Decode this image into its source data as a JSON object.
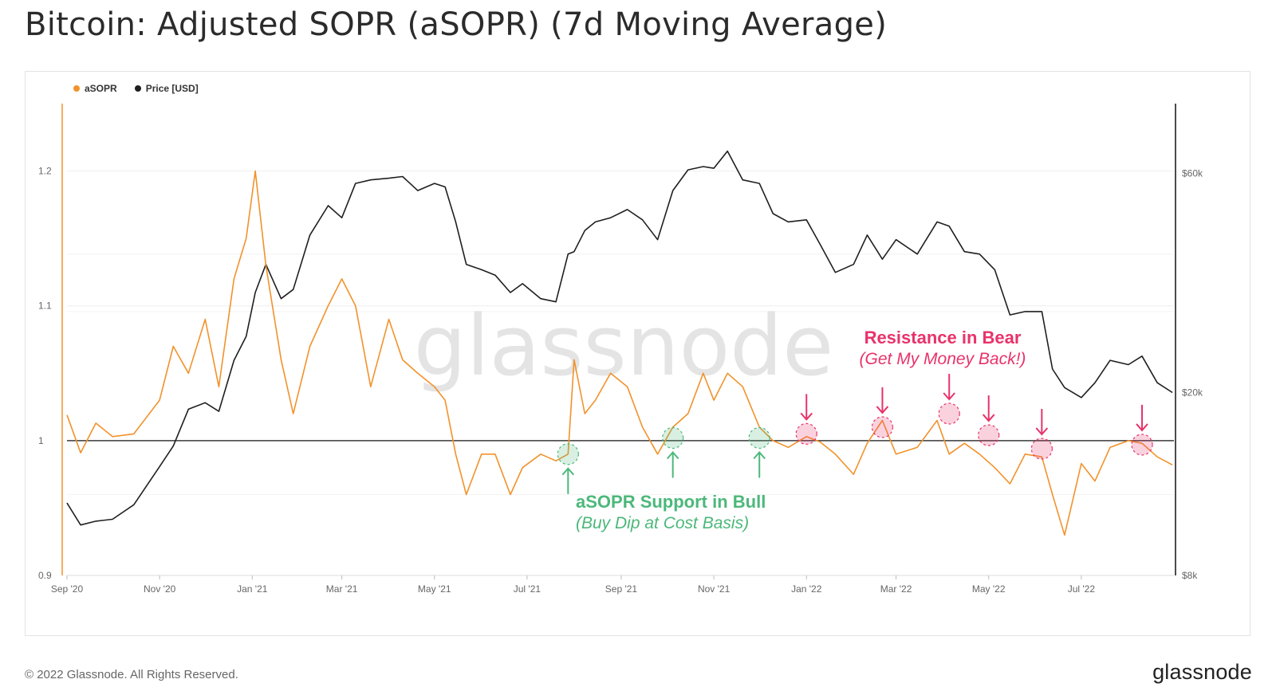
{
  "page": {
    "title": "Bitcoin: Adjusted SOPR (aSOPR) (7d Moving Average)",
    "copyright": "© 2022 Glassnode. All Rights Reserved.",
    "logo_text": "glassnode",
    "watermark": "glassnode"
  },
  "colors": {
    "asopr": "#f2922b",
    "price": "#1f1f1f",
    "support": "#4cb87a",
    "resistance": "#e8336a",
    "baseline": "#3a3a3a"
  },
  "chart_data": {
    "type": "line",
    "legend": [
      {
        "name": "aSOPR",
        "color": "#f2922b"
      },
      {
        "name": "Price [USD]",
        "color": "#1f1f1f"
      }
    ],
    "x_ticks": [
      "Sep '20",
      "Nov '20",
      "Jan '21",
      "Mar '21",
      "May '21",
      "Jul '21",
      "Sep '21",
      "Nov '21",
      "Jan '22",
      "Mar '22",
      "May '22",
      "Jul '22"
    ],
    "left_axis": {
      "ticks": [
        "0.9",
        "1",
        "1.1",
        "1.2"
      ],
      "range": [
        0.9,
        1.25
      ]
    },
    "right_axis": {
      "ticks": [
        "$8k",
        "$20k",
        "$60k"
      ],
      "scale": "log"
    },
    "baseline": 1.0,
    "series": [
      {
        "name": "aSOPR",
        "x": [
          "2020-09-01",
          "2020-09-10",
          "2020-09-20",
          "2020-10-01",
          "2020-10-15",
          "2020-11-01",
          "2020-11-10",
          "2020-11-20",
          "2020-12-01",
          "2020-12-10",
          "2020-12-20",
          "2020-12-28",
          "2021-01-03",
          "2021-01-10",
          "2021-01-20",
          "2021-01-28",
          "2021-02-08",
          "2021-02-20",
          "2021-03-01",
          "2021-03-10",
          "2021-03-20",
          "2021-04-01",
          "2021-04-10",
          "2021-04-20",
          "2021-05-01",
          "2021-05-08",
          "2021-05-15",
          "2021-05-22",
          "2021-06-01",
          "2021-06-10",
          "2021-06-20",
          "2021-06-28",
          "2021-07-10",
          "2021-07-20",
          "2021-07-28",
          "2021-08-01",
          "2021-08-08",
          "2021-08-15",
          "2021-08-25",
          "2021-09-05",
          "2021-09-15",
          "2021-09-25",
          "2021-10-05",
          "2021-10-15",
          "2021-10-25",
          "2021-11-01",
          "2021-11-10",
          "2021-11-20",
          "2021-12-01",
          "2021-12-10",
          "2021-12-20",
          "2022-01-01",
          "2022-01-10",
          "2022-01-20",
          "2022-02-01",
          "2022-02-10",
          "2022-02-20",
          "2022-03-01",
          "2022-03-15",
          "2022-03-28",
          "2022-04-05",
          "2022-04-15",
          "2022-04-25",
          "2022-05-05",
          "2022-05-15",
          "2022-05-25",
          "2022-06-05",
          "2022-06-12",
          "2022-06-20",
          "2022-07-01",
          "2022-07-10",
          "2022-07-20",
          "2022-08-01",
          "2022-08-10",
          "2022-08-20",
          "2022-08-30"
        ],
        "values": [
          1.019,
          0.991,
          1.013,
          1.003,
          1.005,
          1.03,
          1.07,
          1.05,
          1.09,
          1.04,
          1.12,
          1.15,
          1.2,
          1.13,
          1.06,
          1.02,
          1.07,
          1.1,
          1.12,
          1.1,
          1.04,
          1.09,
          1.06,
          1.05,
          1.04,
          1.03,
          0.99,
          0.96,
          0.99,
          0.99,
          0.96,
          0.98,
          0.99,
          0.985,
          0.99,
          1.06,
          1.02,
          1.03,
          1.05,
          1.04,
          1.01,
          0.99,
          1.01,
          1.02,
          1.05,
          1.03,
          1.05,
          1.04,
          1.01,
          1.0,
          0.995,
          1.003,
          0.999,
          0.99,
          0.975,
          0.998,
          1.015,
          0.99,
          0.995,
          1.015,
          0.99,
          0.998,
          0.99,
          0.98,
          0.968,
          0.99,
          0.988,
          0.96,
          0.93,
          0.983,
          0.97,
          0.995,
          1.0,
          0.998,
          0.988,
          0.982
        ]
      },
      {
        "name": "Price [USD]",
        "x": [
          "2020-09-01",
          "2020-09-10",
          "2020-09-20",
          "2020-10-01",
          "2020-10-15",
          "2020-11-01",
          "2020-11-10",
          "2020-11-20",
          "2020-12-01",
          "2020-12-10",
          "2020-12-20",
          "2020-12-28",
          "2021-01-03",
          "2021-01-10",
          "2021-01-20",
          "2021-01-28",
          "2021-02-08",
          "2021-02-20",
          "2021-03-01",
          "2021-03-10",
          "2021-03-20",
          "2021-04-01",
          "2021-04-10",
          "2021-04-20",
          "2021-05-01",
          "2021-05-08",
          "2021-05-15",
          "2021-05-22",
          "2021-06-01",
          "2021-06-10",
          "2021-06-20",
          "2021-06-28",
          "2021-07-10",
          "2021-07-20",
          "2021-07-28",
          "2021-08-01",
          "2021-08-08",
          "2021-08-15",
          "2021-08-25",
          "2021-09-05",
          "2021-09-15",
          "2021-09-25",
          "2021-10-05",
          "2021-10-15",
          "2021-10-25",
          "2021-11-01",
          "2021-11-10",
          "2021-11-20",
          "2021-12-01",
          "2021-12-10",
          "2021-12-20",
          "2022-01-01",
          "2022-01-10",
          "2022-01-20",
          "2022-02-01",
          "2022-02-10",
          "2022-02-20",
          "2022-03-01",
          "2022-03-15",
          "2022-03-28",
          "2022-04-05",
          "2022-04-15",
          "2022-04-25",
          "2022-05-05",
          "2022-05-15",
          "2022-05-25",
          "2022-06-05",
          "2022-06-12",
          "2022-06-20",
          "2022-07-01",
          "2022-07-10",
          "2022-07-20",
          "2022-08-01",
          "2022-08-10",
          "2022-08-20",
          "2022-08-30"
        ],
        "values": [
          11500,
          10300,
          10500,
          10600,
          11400,
          13800,
          15300,
          18400,
          19000,
          18200,
          23500,
          26500,
          33000,
          38000,
          32000,
          33500,
          44000,
          51000,
          48000,
          57000,
          58000,
          58500,
          59000,
          55000,
          57000,
          56000,
          47000,
          38000,
          37000,
          36000,
          33000,
          34500,
          32000,
          31500,
          40000,
          40500,
          45000,
          47000,
          48000,
          50000,
          47500,
          43000,
          55000,
          61000,
          62000,
          61500,
          67000,
          58000,
          57000,
          49000,
          47000,
          47500,
          42000,
          36500,
          38000,
          44000,
          39000,
          43000,
          40000,
          47000,
          46000,
          40500,
          40000,
          37000,
          29500,
          30000,
          30000,
          22500,
          20500,
          19500,
          21000,
          23500,
          23000,
          24000,
          21000,
          20000
        ]
      }
    ],
    "annotations": [
      {
        "kind": "support",
        "title": "aSOPR Support in Bull",
        "subtitle": "(Buy Dip at Cost Basis)",
        "points": [
          "2021-07-28",
          "2021-10-05",
          "2021-12-01"
        ],
        "values": [
          0.99,
          1.002,
          1.002
        ]
      },
      {
        "kind": "resistance",
        "title": "Resistance in Bear",
        "subtitle": "(Get My Money Back!)",
        "points": [
          "2022-01-01",
          "2022-02-20",
          "2022-04-05",
          "2022-05-01",
          "2022-06-05",
          "2022-08-10"
        ],
        "values": [
          1.005,
          1.01,
          1.02,
          1.004,
          0.994,
          0.997
        ]
      }
    ]
  }
}
